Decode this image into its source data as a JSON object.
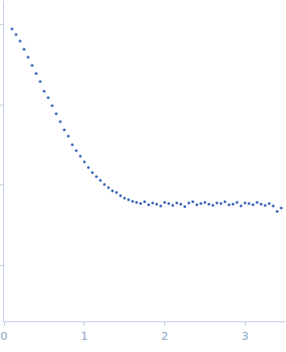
{
  "chart_data": {
    "type": "scatter",
    "x": [
      0.1,
      0.15,
      0.2,
      0.25,
      0.3,
      0.35,
      0.4,
      0.45,
      0.5,
      0.55,
      0.6,
      0.65,
      0.7,
      0.75,
      0.8,
      0.85,
      0.9,
      0.95,
      1.0,
      1.05,
      1.1,
      1.15,
      1.2,
      1.25,
      1.3,
      1.35,
      1.4,
      1.45,
      1.5,
      1.55,
      1.6,
      1.65,
      1.7,
      1.75,
      1.8,
      1.85,
      1.9,
      1.95,
      2.0,
      2.05,
      2.1,
      2.15,
      2.2,
      2.25,
      2.3,
      2.35,
      2.4,
      2.45,
      2.5,
      2.55,
      2.6,
      2.65,
      2.7,
      2.75,
      2.8,
      2.85,
      2.9,
      2.95,
      3.0,
      3.05,
      3.1,
      3.15,
      3.2,
      3.25,
      3.3,
      3.35,
      3.4,
      3.45
    ],
    "values": [
      8.9,
      7.55,
      6.27,
      4.97,
      3.95,
      3.13,
      2.48,
      1.97,
      1.49,
      1.24,
      0.98,
      0.78,
      0.62,
      0.49,
      0.41,
      0.32,
      0.27,
      0.23,
      0.195,
      0.166,
      0.144,
      0.128,
      0.115,
      0.102,
      0.093,
      0.085,
      0.081,
      0.074,
      0.069,
      0.066,
      0.063,
      0.061,
      0.059,
      0.062,
      0.057,
      0.06,
      0.058,
      0.055,
      0.061,
      0.059,
      0.056,
      0.06,
      0.058,
      0.054,
      0.06,
      0.062,
      0.057,
      0.059,
      0.061,
      0.058,
      0.056,
      0.06,
      0.059,
      0.062,
      0.057,
      0.058,
      0.061,
      0.055,
      0.06,
      0.059,
      0.057,
      0.061,
      0.058,
      0.056,
      0.059,
      0.055,
      0.047,
      0.052
    ],
    "color": "#3a66b8",
    "marker": "circle",
    "xlim": [
      0,
      3.5
    ],
    "xticks": [
      0,
      1,
      2,
      3
    ],
    "ylim": [
      0.002,
      20
    ],
    "yticks": [
      0.01,
      0.1,
      1,
      10
    ],
    "log": "y",
    "grid": false,
    "tick_labels": "x"
  }
}
